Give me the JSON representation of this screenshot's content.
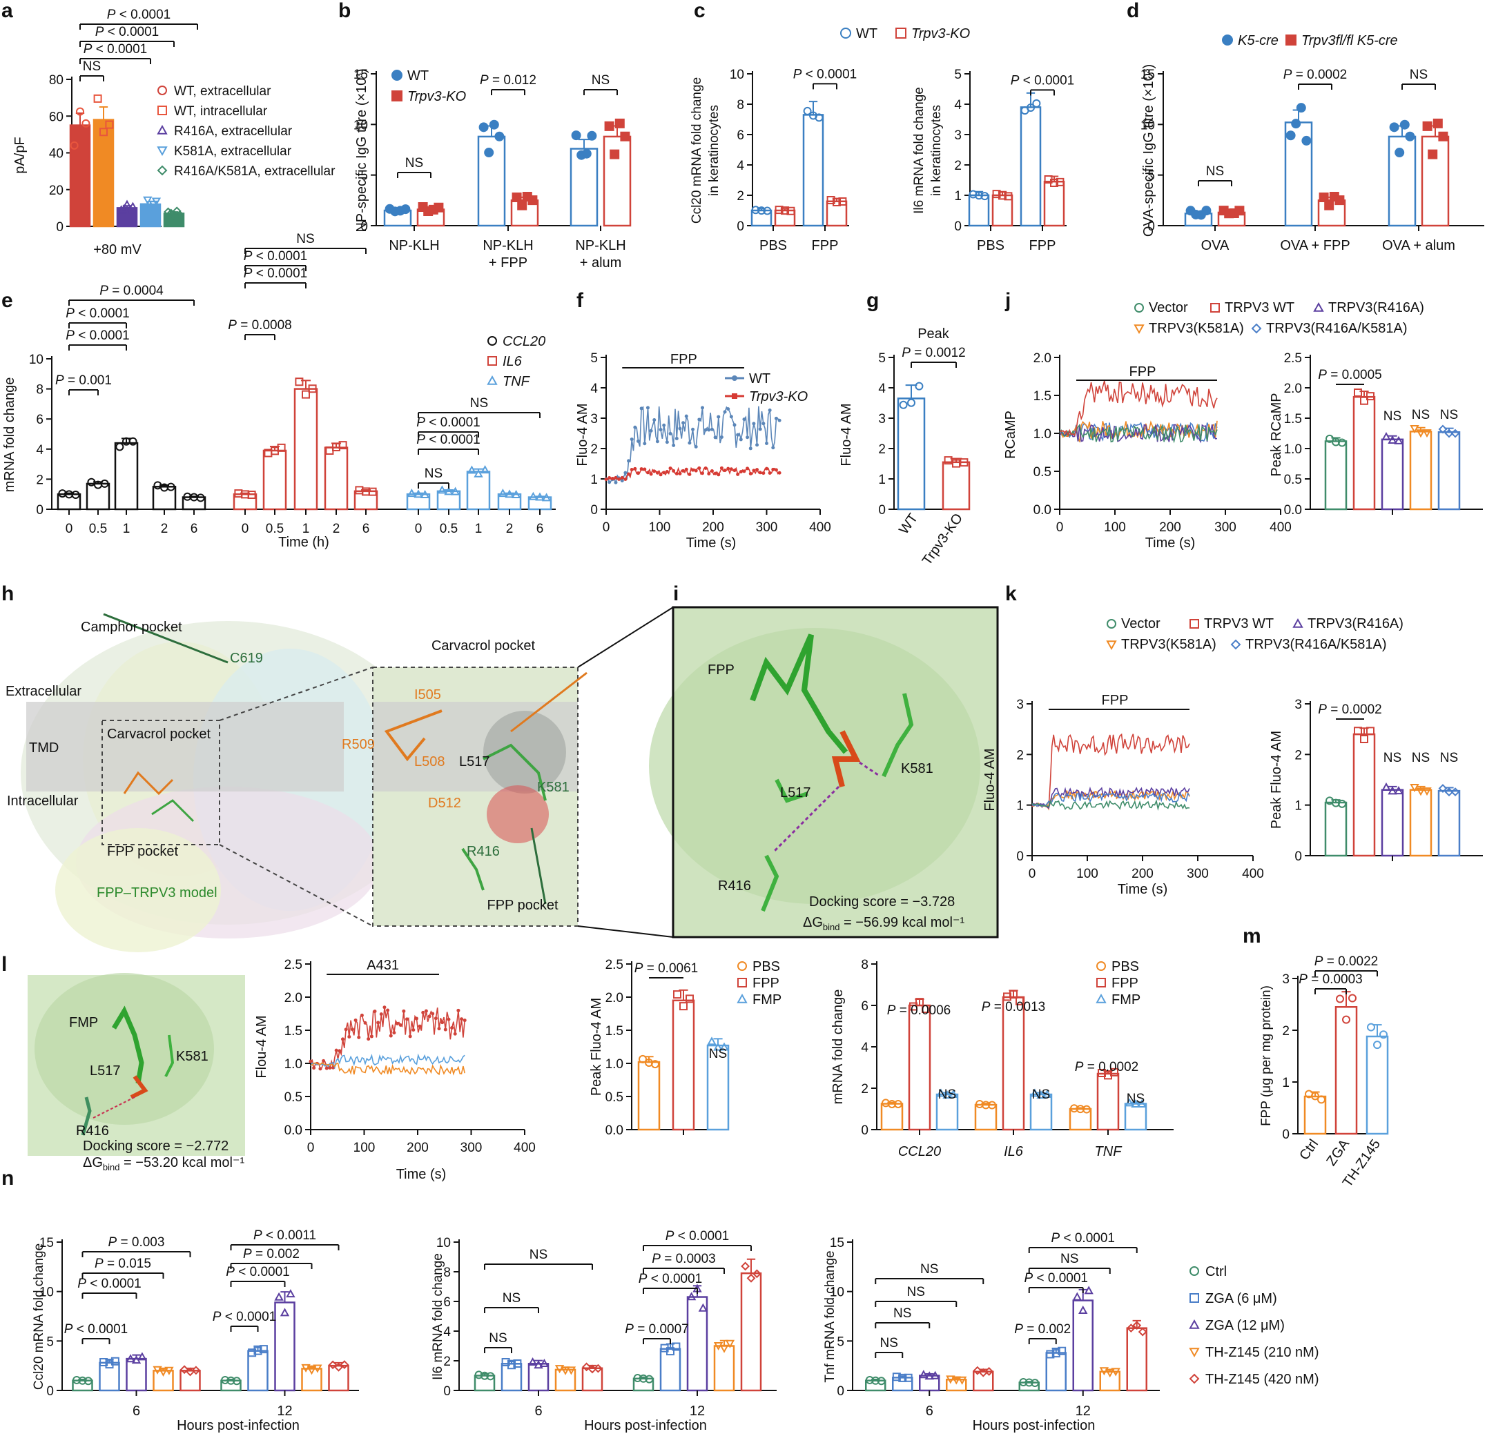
{
  "colors": {
    "wt": "#3a7fc2",
    "ko": "#d0433a",
    "orange": "#f08a24",
    "purple": "#5b3fa0",
    "green": "#3f8c6a",
    "light_blue": "#5aa0dc",
    "black": "#111111",
    "grey_band": "#cfcfcf"
  },
  "panels": {
    "a": {
      "label": "a",
      "ylabel": "pA/pF",
      "xlabel": "+80 mV",
      "legend": [
        "WT, extracellular",
        "WT, intracellular",
        "R416A, extracellular",
        "K581A, extracellular",
        "R416A/K581A, extracellular"
      ],
      "sig": [
        "P < 0.0001",
        "P < 0.0001",
        "P < 0.0001",
        "NS"
      ]
    },
    "b": {
      "label": "b",
      "ylabel": "NP-specific IgG titre (×10³)",
      "legend": [
        "WT",
        "Trpv3-KO"
      ],
      "groups": [
        "NP-KLH",
        "NP-KLH",
        "NP-KLH"
      ],
      "groups2": [
        "",
        "+ FPP",
        "+ alum"
      ],
      "sig": [
        "NS",
        "P = 0.012",
        "NS"
      ]
    },
    "c": {
      "label": "c",
      "legend": [
        "WT",
        "Trpv3-KO"
      ],
      "ylabel1": "Ccl20 mRNA fold change",
      "ylabel1b": "in keratinocytes",
      "ylabel2": "Il6 mRNA fold change",
      "ylabel2b": "in keratinocytes",
      "groups": [
        "PBS",
        "FPP"
      ],
      "sig": [
        "P < 0.0001",
        "P < 0.0001"
      ]
    },
    "d": {
      "label": "d",
      "legend": [
        "K5-cre",
        "Trpv3fl/fl K5-cre"
      ],
      "ylabel": "OVA-specific IgG titre (×10³)",
      "groups": [
        "OVA",
        "OVA + FPP",
        "OVA + alum"
      ],
      "sig": [
        "NS",
        "P = 0.0002",
        "NS"
      ]
    },
    "e": {
      "label": "e",
      "ylabel": "mRNA fold change",
      "xlabel": "Time (h)",
      "timepoints": [
        "0",
        "0.5",
        "1",
        "2",
        "6"
      ],
      "legend": [
        "CCL20",
        "IL6",
        "TNF"
      ],
      "sig_ccl20": [
        "P = 0.001",
        "P < 0.0001",
        "P < 0.0001",
        "P = 0.0004"
      ],
      "sig_il6": [
        "P = 0.0008",
        "P < 0.0001",
        "P < 0.0001",
        "NS"
      ],
      "sig_tnf": [
        "NS",
        "P < 0.0001",
        "P < 0.0001",
        "NS"
      ]
    },
    "f": {
      "label": "f",
      "ylabel": "Fluo-4 AM",
      "xlabel": "Time (s)",
      "bar_label": "FPP",
      "legend": [
        "WT",
        "Trpv3-KO"
      ]
    },
    "g": {
      "label": "g",
      "title": "Peak",
      "ylabel": "Fluo-4 AM",
      "sig": "P = 0.0012",
      "groups": [
        "WT",
        "Trpv3-KO"
      ]
    },
    "j": {
      "label": "j",
      "legend": [
        "Vector",
        "TRPV3 WT",
        "TRPV3(R416A)",
        "TRPV3(K581A)",
        "TRPV3(R416A/K581A)"
      ],
      "ylabel": "RCaMP",
      "xlabel": "Time (s)",
      "bar_label": "FPP",
      "ylabel2": "Peak RCaMP",
      "sig": [
        "P = 0.0005",
        "NS",
        "NS",
        "NS"
      ]
    },
    "h": {
      "label": "h",
      "camphor": "Camphor pocket",
      "c619": "C619",
      "extracellular": "Extracellular",
      "tmd": "TMD",
      "intracellular": "Intracellular",
      "carvacrol": "Carvacrol pocket",
      "fpp_pocket": "FPP pocket",
      "model": "FPP–TRPV3 model",
      "residues": [
        "R509",
        "I505",
        "L508",
        "L517",
        "D512",
        "K581",
        "R416"
      ]
    },
    "i": {
      "label": "i",
      "fpp": "FPP",
      "l517": "L517",
      "k581": "K581",
      "r416": "R416",
      "score": "Docking score = −3.728",
      "dg_prefix": "ΔG",
      "dg_sub": "bind",
      "dg_value": " = −56.99 kcal mol⁻¹"
    },
    "k": {
      "label": "k",
      "legend": [
        "Vector",
        "TRPV3 WT",
        "TRPV3(R416A)",
        "TRPV3(K581A)",
        "TRPV3(R416A/K581A)"
      ],
      "ylabel": "Fluo-4 AM",
      "xlabel": "Time (s)",
      "bar_label": "FPP",
      "ylabel2": "Peak Fluo-4 AM",
      "sig": [
        "P = 0.0002",
        "NS",
        "NS",
        "NS"
      ]
    },
    "l": {
      "label": "l",
      "fmp": "FMP",
      "l517": "L517",
      "k581": "K581",
      "r416": "R416",
      "score": "Docking score = −2.772",
      "dg_prefix": "ΔG",
      "dg_sub": "bind",
      "dg_value": " = −53.20 kcal mol⁻¹",
      "trace_ylabel": "Flou-4 AM",
      "trace_xlabel": "Time (s)",
      "bar_label": "A431",
      "peak_ylabel": "Peak Fluo-4 AM",
      "peak_sig": [
        "P = 0.0061",
        "NS"
      ],
      "legend": [
        "PBS",
        "FPP",
        "FMP"
      ],
      "mrna_ylabel": "mRNA fold change",
      "genes": [
        "CCL20",
        "IL6",
        "TNF"
      ],
      "mrna_sig": [
        "P = 0.0006",
        "P = 0.0013",
        "P = 0.0002",
        "NS",
        "NS",
        "NS"
      ]
    },
    "m": {
      "label": "m",
      "ylabel": "FPP (μg per mg protein)",
      "groups": [
        "Ctrl",
        "ZGA",
        "TH-Z145"
      ],
      "sig": [
        "P = 0.0022",
        "P = 0.0003"
      ]
    },
    "n": {
      "label": "n",
      "xlabel": "Hours post-infection",
      "times": [
        "6",
        "12"
      ],
      "ylabel1": "Ccl20 mRNA fold change",
      "ylabel2": "Il6 mRNA fold change",
      "ylabel3": "Tnf mRNA fold change",
      "legend": [
        "Ctrl",
        "ZGA (6 μM)",
        "ZGA (12 μM)",
        "TH-Z145 (210 nM)",
        "TH-Z145 (420 nM)"
      ],
      "sig1": [
        "P < 0.0001",
        "P < 0.0001",
        "P = 0.015",
        "P = 0.003",
        "P < 0.0001",
        "P < 0.0001",
        "P = 0.002",
        "P < 0.0011"
      ],
      "sig2": [
        "NS",
        "NS",
        "NS",
        "P = 0.0007",
        "P < 0.0001",
        "P = 0.0003",
        "P < 0.0001"
      ],
      "sig3": [
        "NS",
        "NS",
        "NS",
        "NS",
        "P = 0.002",
        "P < 0.0001",
        "NS",
        "P < 0.0001"
      ]
    }
  },
  "chart_data": [
    {
      "id": "a",
      "type": "bar",
      "categories": [
        "WT, extracellular",
        "WT, intracellular",
        "R416A, extracellular",
        "K581A, extracellular",
        "R416A/K581A, extracellular"
      ],
      "values": [
        55,
        58,
        10,
        12,
        7
      ],
      "ylim": [
        0,
        80
      ],
      "yticks": [
        0,
        20,
        40,
        60,
        80
      ],
      "xlabel": "+80 mV",
      "ylabel": "pA/pF"
    },
    {
      "id": "b",
      "type": "bar",
      "categories": [
        "NP-KLH",
        "NP-KLH + FPP",
        "NP-KLH + alum"
      ],
      "series": [
        {
          "name": "WT",
          "values": [
            1.5,
            8.8,
            7.6
          ]
        },
        {
          "name": "Trpv3-KO",
          "values": [
            1.6,
            2.5,
            8.8
          ]
        }
      ],
      "ylim": [
        0,
        15
      ],
      "yticks": [
        0,
        5,
        10,
        15
      ]
    },
    {
      "id": "c1",
      "type": "bar",
      "categories": [
        "PBS",
        "FPP"
      ],
      "series": [
        {
          "name": "WT",
          "values": [
            1.0,
            7.3
          ]
        },
        {
          "name": "Trpv3-KO",
          "values": [
            1.0,
            1.6
          ]
        }
      ],
      "ylim": [
        0,
        10
      ],
      "yticks": [
        0,
        2,
        4,
        6,
        8,
        10
      ]
    },
    {
      "id": "c2",
      "type": "bar",
      "categories": [
        "PBS",
        "FPP"
      ],
      "series": [
        {
          "name": "WT",
          "values": [
            1.0,
            3.9
          ]
        },
        {
          "name": "Trpv3-KO",
          "values": [
            1.0,
            1.45
          ]
        }
      ],
      "ylim": [
        0,
        5
      ],
      "yticks": [
        0,
        1,
        2,
        3,
        4,
        5
      ]
    },
    {
      "id": "d",
      "type": "bar",
      "categories": [
        "OVA",
        "OVA + FPP",
        "OVA + alum"
      ],
      "series": [
        {
          "name": "K5-cre",
          "values": [
            1.2,
            10.2,
            8.8
          ]
        },
        {
          "name": "Trpv3fl/fl K5-cre",
          "values": [
            1.3,
            2.5,
            8.8
          ]
        }
      ],
      "ylim": [
        0,
        15
      ],
      "yticks": [
        0,
        5,
        10,
        15
      ]
    },
    {
      "id": "e",
      "type": "bar",
      "x": [
        "0",
        "0.5",
        "1",
        "2",
        "6"
      ],
      "series": [
        {
          "name": "CCL20",
          "values": [
            1.0,
            1.7,
            4.4,
            1.5,
            0.8
          ]
        },
        {
          "name": "IL6",
          "values": [
            1.0,
            3.9,
            8.0,
            4.1,
            1.2
          ]
        },
        {
          "name": "TNF",
          "values": [
            1.0,
            1.2,
            2.5,
            1.0,
            0.8
          ]
        }
      ],
      "ylim": [
        0,
        10
      ],
      "yticks": [
        0,
        2,
        4,
        6,
        8,
        10
      ],
      "xlabel": "Time (h)",
      "ylabel": "mRNA fold change"
    },
    {
      "id": "f",
      "type": "line",
      "xlim": [
        0,
        400
      ],
      "ylim": [
        0,
        5
      ],
      "xticks": [
        0,
        100,
        200,
        300,
        400
      ],
      "yticks": [
        0,
        1,
        2,
        3,
        4,
        5
      ],
      "series": [
        {
          "name": "WT",
          "baseline": 1.0,
          "plateau": 2.7,
          "x_start": 0,
          "x_end": 325,
          "onset": 35
        },
        {
          "name": "Trpv3-KO",
          "baseline": 1.0,
          "plateau": 1.25,
          "x_start": 0,
          "x_end": 325,
          "onset": 35
        }
      ]
    },
    {
      "id": "g",
      "type": "bar",
      "categories": [
        "WT",
        "Trpv3-KO"
      ],
      "values": [
        3.65,
        1.55
      ],
      "ylim": [
        0,
        5
      ],
      "yticks": [
        0,
        1,
        2,
        3,
        4,
        5
      ]
    },
    {
      "id": "j1",
      "type": "line",
      "xlim": [
        0,
        400
      ],
      "ylim": [
        0.0,
        2.0
      ],
      "xticks": [
        0,
        100,
        200,
        300,
        400
      ],
      "yticks": [
        0.0,
        0.5,
        1.0,
        1.5,
        2.0
      ],
      "series": [
        {
          "name": "Vector",
          "plateau": 1.0
        },
        {
          "name": "TRPV3 WT",
          "plateau": 1.55
        },
        {
          "name": "TRPV3(R416A)",
          "plateau": 1.0
        },
        {
          "name": "TRPV3(K581A)",
          "plateau": 1.05
        },
        {
          "name": "TRPV3(R416A/K581A)",
          "plateau": 1.02
        }
      ]
    },
    {
      "id": "j2",
      "type": "bar",
      "categories": [
        "Vector",
        "TRPV3 WT",
        "TRPV3(R416A)",
        "TRPV3(K581A)",
        "TRPV3(R416A/K581A)"
      ],
      "values": [
        1.12,
        1.85,
        1.15,
        1.28,
        1.27
      ],
      "ylim": [
        0.0,
        2.5
      ],
      "yticks": [
        0.0,
        0.5,
        1.0,
        1.5,
        2.0,
        2.5
      ]
    },
    {
      "id": "k1",
      "type": "line",
      "xlim": [
        0,
        400
      ],
      "ylim": [
        0,
        3
      ],
      "xticks": [
        0,
        100,
        200,
        300,
        400
      ],
      "yticks": [
        0,
        1,
        2,
        3
      ],
      "series": [
        {
          "name": "Vector",
          "plateau": 1.0
        },
        {
          "name": "TRPV3 WT",
          "plateau": 2.2
        },
        {
          "name": "TRPV3(R416A)",
          "plateau": 1.25
        },
        {
          "name": "TRPV3(K581A)",
          "plateau": 1.2
        },
        {
          "name": "TRPV3(R416A/K581A)",
          "plateau": 1.15
        }
      ]
    },
    {
      "id": "k2",
      "type": "bar",
      "categories": [
        "Vector",
        "TRPV3 WT",
        "TRPV3(R416A)",
        "TRPV3(K581A)",
        "TRPV3(R416A/K581A)"
      ],
      "values": [
        1.05,
        2.4,
        1.3,
        1.3,
        1.28
      ],
      "ylim": [
        0,
        3
      ],
      "yticks": [
        0,
        1,
        2,
        3
      ]
    },
    {
      "id": "l1",
      "type": "line",
      "xlim": [
        0,
        400
      ],
      "ylim": [
        0.0,
        2.5
      ],
      "xticks": [
        0,
        100,
        200,
        300,
        400
      ],
      "yticks": [
        0.0,
        0.5,
        1.0,
        1.5,
        2.0,
        2.5
      ],
      "series": [
        {
          "name": "PBS",
          "plateau": 0.9
        },
        {
          "name": "FPP",
          "plateau": 1.6
        },
        {
          "name": "FMP",
          "plateau": 1.05
        }
      ]
    },
    {
      "id": "l2",
      "type": "bar",
      "categories": [
        "PBS",
        "FPP",
        "FMP"
      ],
      "values": [
        1.02,
        1.95,
        1.27
      ],
      "ylim": [
        0.0,
        2.5
      ],
      "yticks": [
        0.0,
        0.5,
        1.0,
        1.5,
        2.0,
        2.5
      ]
    },
    {
      "id": "l3",
      "type": "bar",
      "categories": [
        "CCL20",
        "IL6",
        "TNF"
      ],
      "series": [
        {
          "name": "PBS",
          "values": [
            1.25,
            1.2,
            1.0
          ]
        },
        {
          "name": "FPP",
          "values": [
            6.0,
            6.4,
            2.7
          ]
        },
        {
          "name": "FMP",
          "values": [
            1.7,
            1.7,
            1.25
          ]
        }
      ],
      "ylim": [
        0,
        8
      ],
      "yticks": [
        0,
        2,
        4,
        6,
        8
      ]
    },
    {
      "id": "m",
      "type": "bar",
      "categories": [
        "Ctrl",
        "ZGA",
        "TH-Z145"
      ],
      "values": [
        0.72,
        2.45,
        1.88
      ],
      "ylim": [
        0,
        3
      ],
      "yticks": [
        0,
        1,
        2,
        3
      ]
    },
    {
      "id": "n1",
      "type": "bar",
      "x": [
        "6",
        "12"
      ],
      "series": [
        {
          "name": "Ctrl",
          "values": [
            1.0,
            1.0
          ]
        },
        {
          "name": "ZGA (6 μM)",
          "values": [
            2.8,
            4.0
          ]
        },
        {
          "name": "ZGA (12 μM)",
          "values": [
            3.2,
            8.9
          ]
        },
        {
          "name": "TH-Z145 (210 nM)",
          "values": [
            2.0,
            2.2
          ]
        },
        {
          "name": "TH-Z145 (420 nM)",
          "values": [
            2.0,
            2.5
          ]
        }
      ],
      "ylim": [
        0,
        15
      ],
      "yticks": [
        0,
        5,
        10,
        15
      ]
    },
    {
      "id": "n2",
      "type": "bar",
      "x": [
        "6",
        "12"
      ],
      "series": [
        {
          "name": "Ctrl",
          "values": [
            1.0,
            0.8
          ]
        },
        {
          "name": "ZGA (6 μM)",
          "values": [
            1.8,
            2.8
          ]
        },
        {
          "name": "ZGA (12 μM)",
          "values": [
            1.8,
            6.3
          ]
        },
        {
          "name": "TH-Z145 (210 nM)",
          "values": [
            1.4,
            3.0
          ]
        },
        {
          "name": "TH-Z145 (420 nM)",
          "values": [
            1.5,
            7.9
          ]
        }
      ],
      "ylim": [
        0,
        10
      ],
      "yticks": [
        0,
        2,
        4,
        6,
        8,
        10
      ]
    },
    {
      "id": "n3",
      "type": "bar",
      "x": [
        "6",
        "12"
      ],
      "series": [
        {
          "name": "Ctrl",
          "values": [
            1.0,
            0.8
          ]
        },
        {
          "name": "ZGA (6 μM)",
          "values": [
            1.3,
            3.8
          ]
        },
        {
          "name": "ZGA (12 μM)",
          "values": [
            1.5,
            9.1
          ]
        },
        {
          "name": "TH-Z145 (210 nM)",
          "values": [
            1.1,
            1.9
          ]
        },
        {
          "name": "TH-Z145 (420 nM)",
          "values": [
            1.9,
            6.3
          ]
        }
      ],
      "ylim": [
        0,
        15
      ],
      "yticks": [
        0,
        5,
        10,
        15
      ]
    }
  ]
}
